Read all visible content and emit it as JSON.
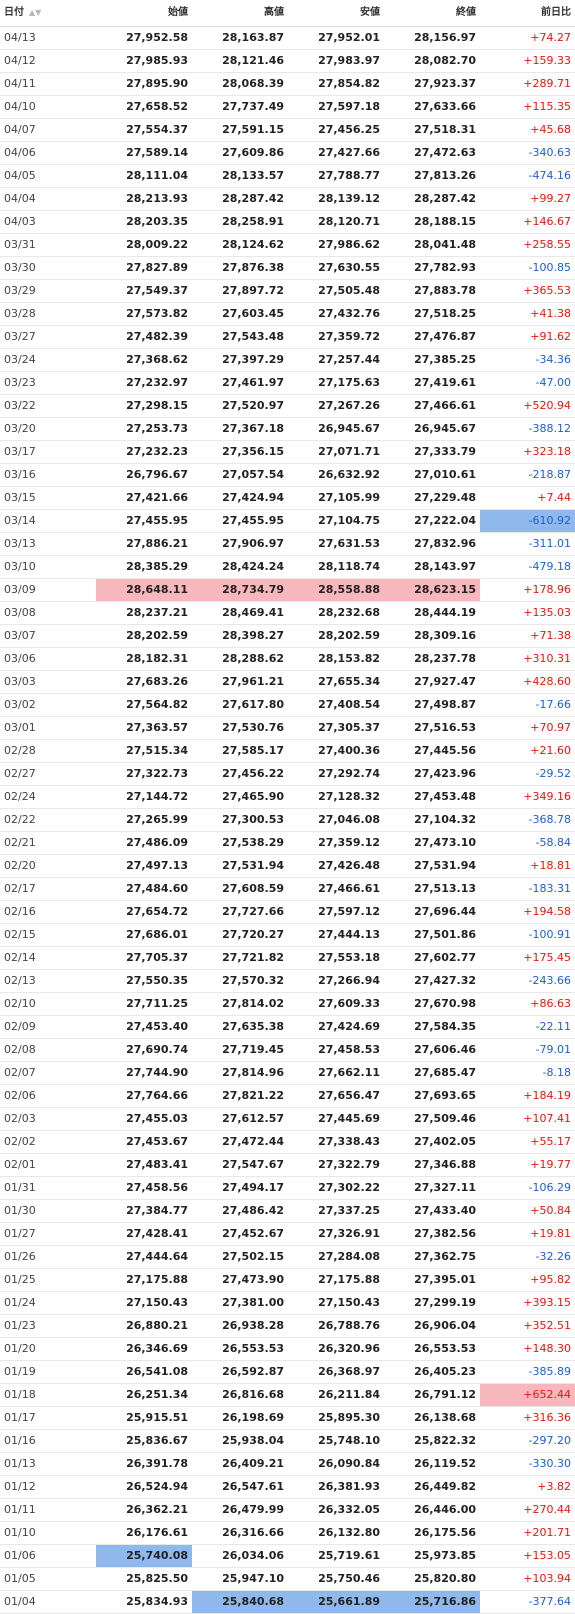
{
  "headers": {
    "date": "日付",
    "open": "始値",
    "high": "高値",
    "low": "安値",
    "close": "終値",
    "change": "前日比",
    "sort_icon": "sort-arrows-icon"
  },
  "colors": {
    "up": "#e8150c",
    "down": "#1e5fcf",
    "highlight_high": "#f6b8bd",
    "highlight_low": "#8fb8ec"
  },
  "rows": [
    {
      "date": "04/13",
      "open": "27,952.58",
      "high": "28,163.87",
      "low": "27,952.01",
      "close": "28,156.97",
      "change": "+74.27"
    },
    {
      "date": "04/12",
      "open": "27,985.93",
      "high": "28,121.46",
      "low": "27,983.97",
      "close": "28,082.70",
      "change": "+159.33"
    },
    {
      "date": "04/11",
      "open": "27,895.90",
      "high": "28,068.39",
      "low": "27,854.82",
      "close": "27,923.37",
      "change": "+289.71"
    },
    {
      "date": "04/10",
      "open": "27,658.52",
      "high": "27,737.49",
      "low": "27,597.18",
      "close": "27,633.66",
      "change": "+115.35"
    },
    {
      "date": "04/07",
      "open": "27,554.37",
      "high": "27,591.15",
      "low": "27,456.25",
      "close": "27,518.31",
      "change": "+45.68"
    },
    {
      "date": "04/06",
      "open": "27,589.14",
      "high": "27,609.86",
      "low": "27,427.66",
      "close": "27,472.63",
      "change": "-340.63"
    },
    {
      "date": "04/05",
      "open": "28,111.04",
      "high": "28,133.57",
      "low": "27,788.77",
      "close": "27,813.26",
      "change": "-474.16"
    },
    {
      "date": "04/04",
      "open": "28,213.93",
      "high": "28,287.42",
      "low": "28,139.12",
      "close": "28,287.42",
      "change": "+99.27"
    },
    {
      "date": "04/03",
      "open": "28,203.35",
      "high": "28,258.91",
      "low": "28,120.71",
      "close": "28,188.15",
      "change": "+146.67"
    },
    {
      "date": "03/31",
      "open": "28,009.22",
      "high": "28,124.62",
      "low": "27,986.62",
      "close": "28,041.48",
      "change": "+258.55"
    },
    {
      "date": "03/30",
      "open": "27,827.89",
      "high": "27,876.38",
      "low": "27,630.55",
      "close": "27,782.93",
      "change": "-100.85"
    },
    {
      "date": "03/29",
      "open": "27,549.37",
      "high": "27,897.72",
      "low": "27,505.48",
      "close": "27,883.78",
      "change": "+365.53"
    },
    {
      "date": "03/28",
      "open": "27,573.82",
      "high": "27,603.45",
      "low": "27,432.76",
      "close": "27,518.25",
      "change": "+41.38"
    },
    {
      "date": "03/27",
      "open": "27,482.39",
      "high": "27,543.48",
      "low": "27,359.72",
      "close": "27,476.87",
      "change": "+91.62"
    },
    {
      "date": "03/24",
      "open": "27,368.62",
      "high": "27,397.29",
      "low": "27,257.44",
      "close": "27,385.25",
      "change": "-34.36"
    },
    {
      "date": "03/23",
      "open": "27,232.97",
      "high": "27,461.97",
      "low": "27,175.63",
      "close": "27,419.61",
      "change": "-47.00"
    },
    {
      "date": "03/22",
      "open": "27,298.15",
      "high": "27,520.97",
      "low": "27,267.26",
      "close": "27,466.61",
      "change": "+520.94"
    },
    {
      "date": "03/20",
      "open": "27,253.73",
      "high": "27,367.18",
      "low": "26,945.67",
      "close": "26,945.67",
      "change": "-388.12"
    },
    {
      "date": "03/17",
      "open": "27,232.23",
      "high": "27,356.15",
      "low": "27,071.71",
      "close": "27,333.79",
      "change": "+323.18"
    },
    {
      "date": "03/16",
      "open": "26,796.67",
      "high": "27,057.54",
      "low": "26,632.92",
      "close": "27,010.61",
      "change": "-218.87"
    },
    {
      "date": "03/15",
      "open": "27,421.66",
      "high": "27,424.94",
      "low": "27,105.99",
      "close": "27,229.48",
      "change": "+7.44"
    },
    {
      "date": "03/14",
      "open": "27,455.95",
      "high": "27,455.95",
      "low": "27,104.75",
      "close": "27,222.04",
      "change": "-610.92"
    },
    {
      "date": "03/13",
      "open": "27,886.21",
      "high": "27,906.97",
      "low": "27,631.53",
      "close": "27,832.96",
      "change": "-311.01"
    },
    {
      "date": "03/10",
      "open": "28,385.29",
      "high": "28,424.24",
      "low": "28,118.74",
      "close": "28,143.97",
      "change": "-479.18"
    },
    {
      "date": "03/09",
      "open": "28,648.11",
      "high": "28,734.79",
      "low": "28,558.88",
      "close": "28,623.15",
      "change": "+178.96"
    },
    {
      "date": "03/08",
      "open": "28,237.21",
      "high": "28,469.41",
      "low": "28,232.68",
      "close": "28,444.19",
      "change": "+135.03"
    },
    {
      "date": "03/07",
      "open": "28,202.59",
      "high": "28,398.27",
      "low": "28,202.59",
      "close": "28,309.16",
      "change": "+71.38"
    },
    {
      "date": "03/06",
      "open": "28,182.31",
      "high": "28,288.62",
      "low": "28,153.82",
      "close": "28,237.78",
      "change": "+310.31"
    },
    {
      "date": "03/03",
      "open": "27,683.26",
      "high": "27,961.21",
      "low": "27,655.34",
      "close": "27,927.47",
      "change": "+428.60"
    },
    {
      "date": "03/02",
      "open": "27,564.82",
      "high": "27,617.80",
      "low": "27,408.54",
      "close": "27,498.87",
      "change": "-17.66"
    },
    {
      "date": "03/01",
      "open": "27,363.57",
      "high": "27,530.76",
      "low": "27,305.37",
      "close": "27,516.53",
      "change": "+70.97"
    },
    {
      "date": "02/28",
      "open": "27,515.34",
      "high": "27,585.17",
      "low": "27,400.36",
      "close": "27,445.56",
      "change": "+21.60"
    },
    {
      "date": "02/27",
      "open": "27,322.73",
      "high": "27,456.22",
      "low": "27,292.74",
      "close": "27,423.96",
      "change": "-29.52"
    },
    {
      "date": "02/24",
      "open": "27,144.72",
      "high": "27,465.90",
      "low": "27,128.32",
      "close": "27,453.48",
      "change": "+349.16"
    },
    {
      "date": "02/22",
      "open": "27,265.99",
      "high": "27,300.53",
      "low": "27,046.08",
      "close": "27,104.32",
      "change": "-368.78"
    },
    {
      "date": "02/21",
      "open": "27,486.09",
      "high": "27,538.29",
      "low": "27,359.12",
      "close": "27,473.10",
      "change": "-58.84"
    },
    {
      "date": "02/20",
      "open": "27,497.13",
      "high": "27,531.94",
      "low": "27,426.48",
      "close": "27,531.94",
      "change": "+18.81"
    },
    {
      "date": "02/17",
      "open": "27,484.60",
      "high": "27,608.59",
      "low": "27,466.61",
      "close": "27,513.13",
      "change": "-183.31"
    },
    {
      "date": "02/16",
      "open": "27,654.72",
      "high": "27,727.66",
      "low": "27,597.12",
      "close": "27,696.44",
      "change": "+194.58"
    },
    {
      "date": "02/15",
      "open": "27,686.01",
      "high": "27,720.27",
      "low": "27,444.13",
      "close": "27,501.86",
      "change": "-100.91"
    },
    {
      "date": "02/14",
      "open": "27,705.37",
      "high": "27,721.82",
      "low": "27,553.18",
      "close": "27,602.77",
      "change": "+175.45"
    },
    {
      "date": "02/13",
      "open": "27,550.35",
      "high": "27,570.32",
      "low": "27,266.94",
      "close": "27,427.32",
      "change": "-243.66"
    },
    {
      "date": "02/10",
      "open": "27,711.25",
      "high": "27,814.02",
      "low": "27,609.33",
      "close": "27,670.98",
      "change": "+86.63"
    },
    {
      "date": "02/09",
      "open": "27,453.40",
      "high": "27,635.38",
      "low": "27,424.69",
      "close": "27,584.35",
      "change": "-22.11"
    },
    {
      "date": "02/08",
      "open": "27,690.74",
      "high": "27,719.45",
      "low": "27,458.53",
      "close": "27,606.46",
      "change": "-79.01"
    },
    {
      "date": "02/07",
      "open": "27,744.90",
      "high": "27,814.96",
      "low": "27,662.11",
      "close": "27,685.47",
      "change": "-8.18"
    },
    {
      "date": "02/06",
      "open": "27,764.66",
      "high": "27,821.22",
      "low": "27,656.47",
      "close": "27,693.65",
      "change": "+184.19"
    },
    {
      "date": "02/03",
      "open": "27,455.03",
      "high": "27,612.57",
      "low": "27,445.69",
      "close": "27,509.46",
      "change": "+107.41"
    },
    {
      "date": "02/02",
      "open": "27,453.67",
      "high": "27,472.44",
      "low": "27,338.43",
      "close": "27,402.05",
      "change": "+55.17"
    },
    {
      "date": "02/01",
      "open": "27,483.41",
      "high": "27,547.67",
      "low": "27,322.79",
      "close": "27,346.88",
      "change": "+19.77"
    },
    {
      "date": "01/31",
      "open": "27,458.56",
      "high": "27,494.17",
      "low": "27,302.22",
      "close": "27,327.11",
      "change": "-106.29"
    },
    {
      "date": "01/30",
      "open": "27,384.77",
      "high": "27,486.42",
      "low": "27,337.25",
      "close": "27,433.40",
      "change": "+50.84"
    },
    {
      "date": "01/27",
      "open": "27,428.41",
      "high": "27,452.67",
      "low": "27,326.91",
      "close": "27,382.56",
      "change": "+19.81"
    },
    {
      "date": "01/26",
      "open": "27,444.64",
      "high": "27,502.15",
      "low": "27,284.08",
      "close": "27,362.75",
      "change": "-32.26"
    },
    {
      "date": "01/25",
      "open": "27,175.88",
      "high": "27,473.90",
      "low": "27,175.88",
      "close": "27,395.01",
      "change": "+95.82"
    },
    {
      "date": "01/24",
      "open": "27,150.43",
      "high": "27,381.00",
      "low": "27,150.43",
      "close": "27,299.19",
      "change": "+393.15"
    },
    {
      "date": "01/23",
      "open": "26,880.21",
      "high": "26,938.28",
      "low": "26,788.76",
      "close": "26,906.04",
      "change": "+352.51"
    },
    {
      "date": "01/20",
      "open": "26,346.69",
      "high": "26,553.53",
      "low": "26,320.96",
      "close": "26,553.53",
      "change": "+148.30"
    },
    {
      "date": "01/19",
      "open": "26,541.08",
      "high": "26,592.87",
      "low": "26,368.97",
      "close": "26,405.23",
      "change": "-385.89"
    },
    {
      "date": "01/18",
      "open": "26,251.34",
      "high": "26,816.68",
      "low": "26,211.84",
      "close": "26,791.12",
      "change": "+652.44"
    },
    {
      "date": "01/17",
      "open": "25,915.51",
      "high": "26,198.69",
      "low": "25,895.30",
      "close": "26,138.68",
      "change": "+316.36"
    },
    {
      "date": "01/16",
      "open": "25,836.67",
      "high": "25,938.04",
      "low": "25,748.10",
      "close": "25,822.32",
      "change": "-297.20"
    },
    {
      "date": "01/13",
      "open": "26,391.78",
      "high": "26,409.21",
      "low": "26,090.84",
      "close": "26,119.52",
      "change": "-330.30"
    },
    {
      "date": "01/12",
      "open": "26,524.94",
      "high": "26,547.61",
      "low": "26,381.93",
      "close": "26,449.82",
      "change": "+3.82"
    },
    {
      "date": "01/11",
      "open": "26,362.21",
      "high": "26,479.99",
      "low": "26,332.05",
      "close": "26,446.00",
      "change": "+270.44"
    },
    {
      "date": "01/10",
      "open": "26,176.61",
      "high": "26,316.66",
      "low": "26,132.80",
      "close": "26,175.56",
      "change": "+201.71"
    },
    {
      "date": "01/06",
      "open": "25,740.08",
      "high": "26,034.06",
      "low": "25,719.61",
      "close": "25,973.85",
      "change": "+153.05"
    },
    {
      "date": "01/05",
      "open": "25,825.50",
      "high": "25,947.10",
      "low": "25,750.46",
      "close": "25,820.80",
      "change": "+103.94"
    },
    {
      "date": "01/04",
      "open": "25,834.93",
      "high": "25,840.68",
      "low": "25,661.89",
      "close": "25,716.86",
      "change": "-377.64"
    }
  ],
  "highlights": {
    "03/09": {
      "open": "high",
      "high": "high",
      "low": "high",
      "close": "high"
    },
    "03/14": {
      "change": "low"
    },
    "01/18": {
      "change": "high"
    },
    "01/06": {
      "open": "low"
    },
    "01/04": {
      "high": "low",
      "low": "low",
      "close": "low"
    }
  }
}
